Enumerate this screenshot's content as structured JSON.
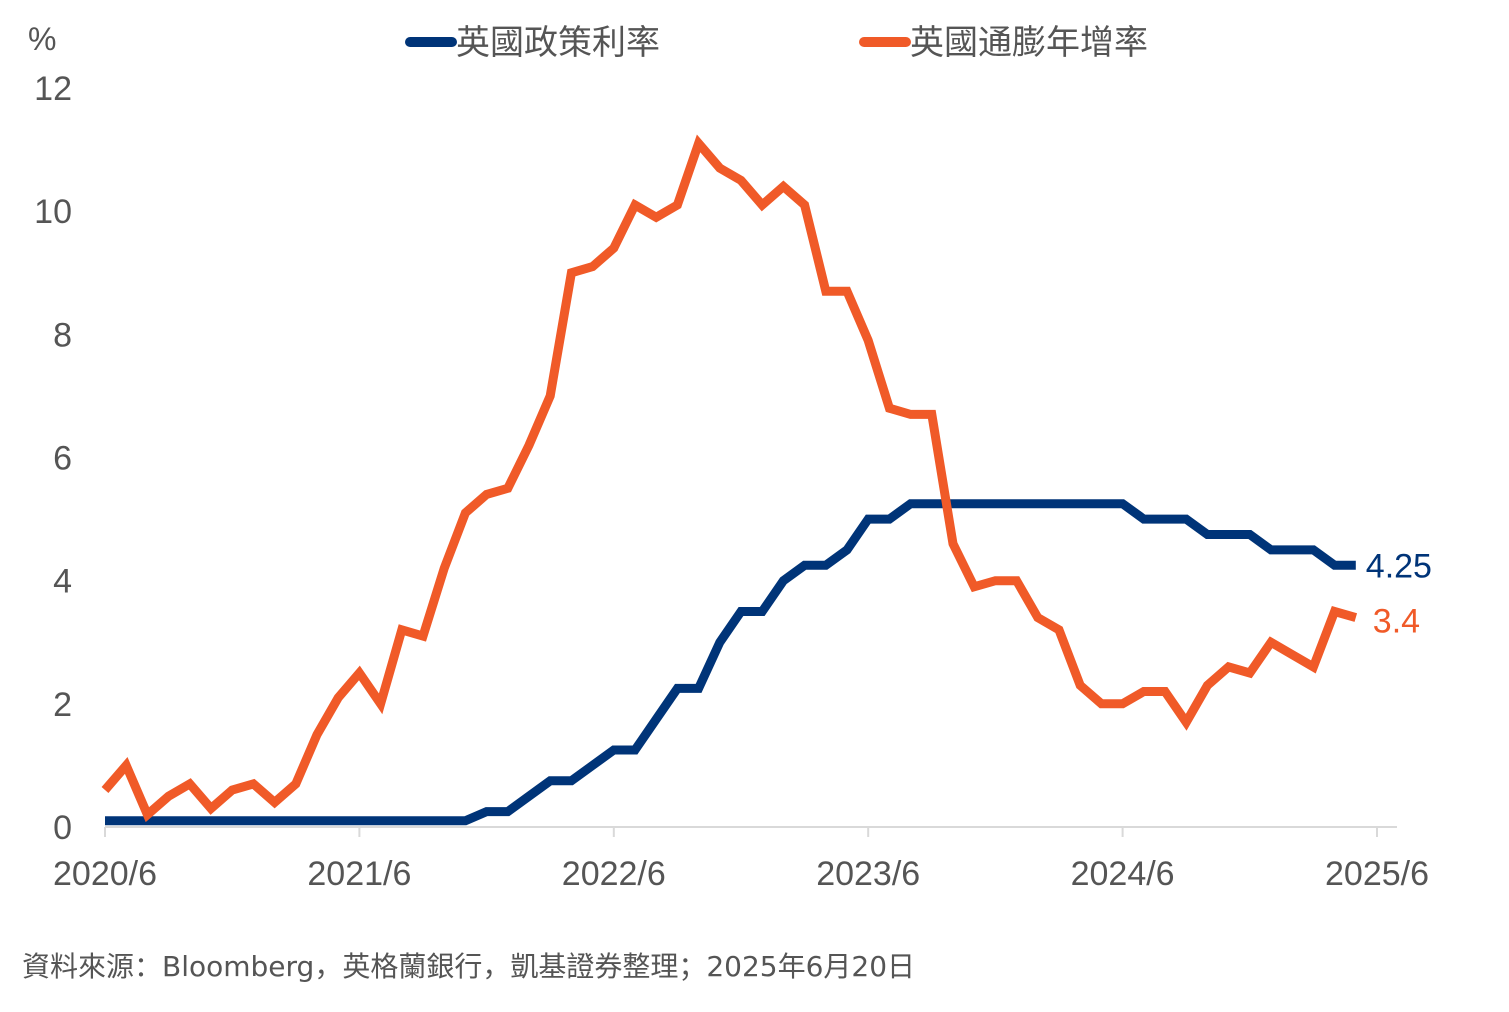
{
  "chart_data": {
    "type": "line",
    "ylabel": "%",
    "ylim": [
      0,
      12
    ],
    "yticks": [
      0,
      2,
      4,
      6,
      8,
      10,
      12
    ],
    "xticks": [
      "2020/6",
      "2021/6",
      "2022/6",
      "2023/6",
      "2024/6",
      "2025/6"
    ],
    "grid": false,
    "legend_position": "top",
    "x": [
      "2020/6",
      "2020/7",
      "2020/8",
      "2020/9",
      "2020/10",
      "2020/11",
      "2020/12",
      "2021/1",
      "2021/2",
      "2021/3",
      "2021/4",
      "2021/5",
      "2021/6",
      "2021/7",
      "2021/8",
      "2021/9",
      "2021/10",
      "2021/11",
      "2021/12",
      "2022/1",
      "2022/2",
      "2022/3",
      "2022/4",
      "2022/5",
      "2022/6",
      "2022/7",
      "2022/8",
      "2022/9",
      "2022/10",
      "2022/11",
      "2022/12",
      "2023/1",
      "2023/2",
      "2023/3",
      "2023/4",
      "2023/5",
      "2023/6",
      "2023/7",
      "2023/8",
      "2023/9",
      "2023/10",
      "2023/11",
      "2023/12",
      "2024/1",
      "2024/2",
      "2024/3",
      "2024/4",
      "2024/5",
      "2024/6",
      "2024/7",
      "2024/8",
      "2024/9",
      "2024/10",
      "2024/11",
      "2024/12",
      "2025/1",
      "2025/2",
      "2025/3",
      "2025/4",
      "2025/5"
    ],
    "series": [
      {
        "name": "英國政策利率",
        "color": "#003478",
        "end_label": "4.25",
        "values": [
          0.1,
          0.1,
          0.1,
          0.1,
          0.1,
          0.1,
          0.1,
          0.1,
          0.1,
          0.1,
          0.1,
          0.1,
          0.1,
          0.1,
          0.1,
          0.1,
          0.1,
          0.1,
          0.25,
          0.25,
          0.5,
          0.75,
          0.75,
          1.0,
          1.25,
          1.25,
          1.75,
          2.25,
          2.25,
          3.0,
          3.5,
          3.5,
          4.0,
          4.25,
          4.25,
          4.5,
          5.0,
          5.0,
          5.25,
          5.25,
          5.25,
          5.25,
          5.25,
          5.25,
          5.25,
          5.25,
          5.25,
          5.25,
          5.25,
          5.0,
          5.0,
          5.0,
          4.75,
          4.75,
          4.75,
          4.5,
          4.5,
          4.5,
          4.25,
          4.25
        ]
      },
      {
        "name": "英國通膨年增率",
        "color": "#F05A28",
        "end_label": "3.4",
        "values": [
          0.6,
          1.0,
          0.2,
          0.5,
          0.7,
          0.3,
          0.6,
          0.7,
          0.4,
          0.7,
          1.5,
          2.1,
          2.5,
          2.0,
          3.2,
          3.1,
          4.2,
          5.1,
          5.4,
          5.5,
          6.2,
          7.0,
          9.0,
          9.1,
          9.4,
          10.1,
          9.9,
          10.1,
          11.1,
          10.7,
          10.5,
          10.1,
          10.4,
          10.1,
          8.7,
          8.7,
          7.9,
          6.8,
          6.7,
          6.7,
          4.6,
          3.9,
          4.0,
          4.0,
          3.4,
          3.2,
          2.3,
          2.0,
          2.0,
          2.2,
          2.2,
          1.7,
          2.3,
          2.6,
          2.5,
          3.0,
          2.8,
          2.6,
          3.5,
          3.4
        ]
      }
    ]
  },
  "source": "資料來源：Bloomberg，英格蘭銀行，凱基證券整理；2025年6月20日"
}
